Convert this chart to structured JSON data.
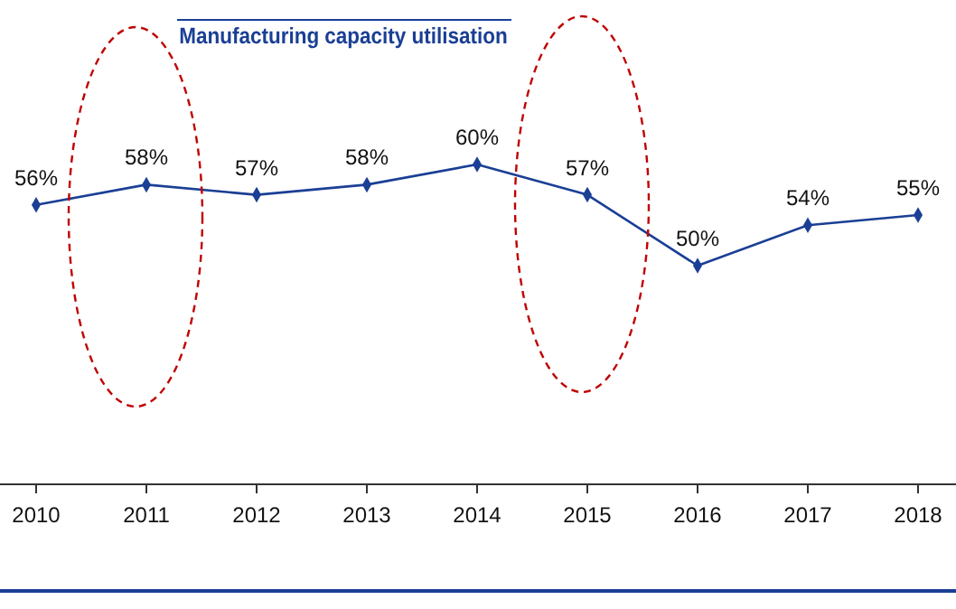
{
  "chart_data": {
    "type": "line",
    "title": "Manufacturing capacity utilisation",
    "categories": [
      "2010",
      "2011",
      "2012",
      "2013",
      "2014",
      "2015",
      "2016",
      "2017",
      "2018"
    ],
    "values": [
      56,
      58,
      57,
      58,
      60,
      57,
      50,
      54,
      55
    ],
    "value_labels": [
      "56%",
      "58%",
      "57%",
      "58%",
      "60%",
      "57%",
      "50%",
      "54%",
      "55%"
    ],
    "color": "#1a3f95",
    "marker": "diamond",
    "line_style": "solid"
  }
}
